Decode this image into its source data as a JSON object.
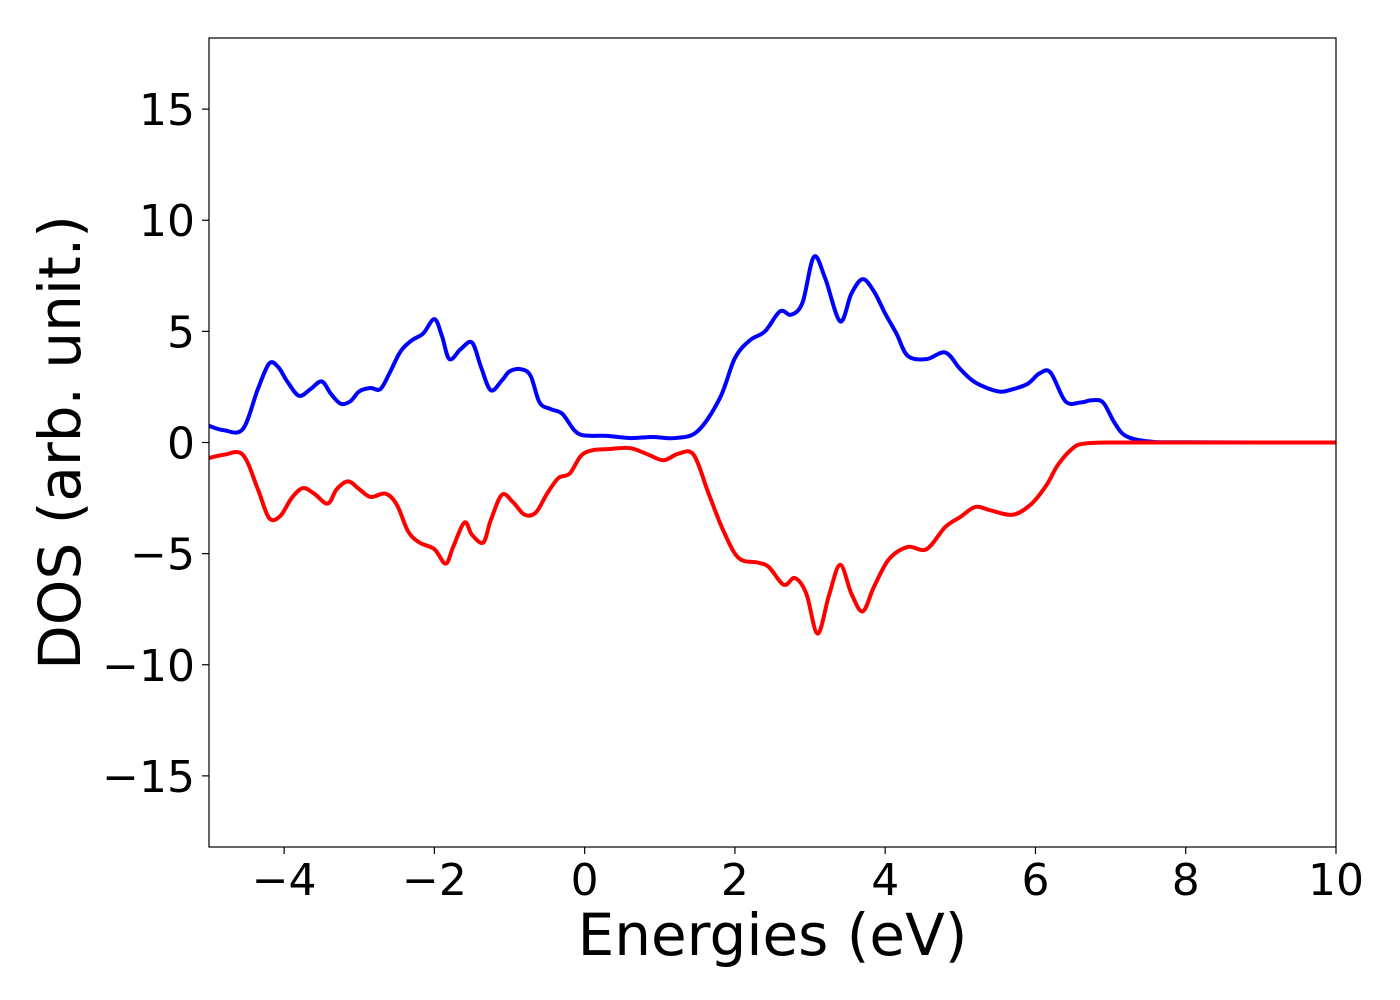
{
  "chart_data": {
    "type": "line",
    "title": "",
    "xlabel": "Energies (eV)",
    "ylabel": "DOS (arb. unit.)",
    "xlim": [
      -5,
      10
    ],
    "ylim": [
      -18.2,
      18.2
    ],
    "xticks": [
      -4,
      -2,
      0,
      2,
      4,
      6,
      8,
      10
    ],
    "yticks": [
      -15,
      -10,
      -5,
      0,
      5,
      10,
      15
    ],
    "xtick_labels": [
      "−4",
      "−2",
      "0",
      "2",
      "4",
      "6",
      "8",
      "10"
    ],
    "ytick_labels": [
      "−15",
      "−10",
      "−5",
      "0",
      "5",
      "10",
      "15"
    ],
    "grid": false,
    "legend": "none",
    "series": [
      {
        "color": "#0000ff",
        "x": [
          -5.0,
          -4.8,
          -4.55,
          -4.35,
          -4.2,
          -4.08,
          -3.95,
          -3.8,
          -3.65,
          -3.5,
          -3.38,
          -3.25,
          -3.12,
          -3.0,
          -2.85,
          -2.72,
          -2.6,
          -2.45,
          -2.3,
          -2.15,
          -2.0,
          -1.9,
          -1.8,
          -1.65,
          -1.5,
          -1.38,
          -1.25,
          -1.1,
          -1.0,
          -0.85,
          -0.72,
          -0.6,
          -0.45,
          -0.3,
          -0.15,
          -0.05,
          0.1,
          0.3,
          0.6,
          0.9,
          1.2,
          1.5,
          1.8,
          2.0,
          2.2,
          2.4,
          2.6,
          2.75,
          2.9,
          3.05,
          3.2,
          3.4,
          3.55,
          3.7,
          3.85,
          4.0,
          4.15,
          4.3,
          4.55,
          4.8,
          5.0,
          5.2,
          5.5,
          5.7,
          5.9,
          6.05,
          6.2,
          6.4,
          6.6,
          6.75,
          6.9,
          7.05,
          7.2,
          7.5,
          8.0,
          10.0
        ],
        "y": [
          0.75,
          0.55,
          0.6,
          2.4,
          3.55,
          3.4,
          2.7,
          2.1,
          2.4,
          2.75,
          2.2,
          1.75,
          1.85,
          2.3,
          2.45,
          2.4,
          3.1,
          4.1,
          4.6,
          4.9,
          5.55,
          4.8,
          3.75,
          4.2,
          4.5,
          3.4,
          2.35,
          2.8,
          3.2,
          3.3,
          3.0,
          1.8,
          1.5,
          1.3,
          0.6,
          0.35,
          0.3,
          0.3,
          0.2,
          0.25,
          0.2,
          0.5,
          2.0,
          3.8,
          4.6,
          5.0,
          5.9,
          5.75,
          6.3,
          8.35,
          7.4,
          5.45,
          6.7,
          7.35,
          6.8,
          5.8,
          4.9,
          3.9,
          3.75,
          4.05,
          3.3,
          2.7,
          2.3,
          2.4,
          2.65,
          3.1,
          3.15,
          1.85,
          1.8,
          1.9,
          1.8,
          0.9,
          0.3,
          0.05,
          0.01,
          0.0
        ]
      },
      {
        "color": "#ff0000",
        "x": [
          -5.0,
          -4.8,
          -4.55,
          -4.35,
          -4.2,
          -4.05,
          -3.9,
          -3.75,
          -3.6,
          -3.42,
          -3.3,
          -3.15,
          -3.0,
          -2.85,
          -2.65,
          -2.5,
          -2.35,
          -2.2,
          -2.0,
          -1.85,
          -1.75,
          -1.6,
          -1.5,
          -1.35,
          -1.25,
          -1.1,
          -0.95,
          -0.8,
          -0.65,
          -0.5,
          -0.35,
          -0.2,
          -0.05,
          0.1,
          0.3,
          0.6,
          0.85,
          1.05,
          1.25,
          1.45,
          1.65,
          1.85,
          2.05,
          2.3,
          2.45,
          2.65,
          2.8,
          2.95,
          3.1,
          3.25,
          3.4,
          3.55,
          3.7,
          3.85,
          4.05,
          4.3,
          4.55,
          4.8,
          5.0,
          5.2,
          5.4,
          5.7,
          5.95,
          6.15,
          6.3,
          6.5,
          6.65,
          7.0,
          8.0,
          10.0
        ],
        "y": [
          -0.7,
          -0.55,
          -0.55,
          -2.1,
          -3.4,
          -3.3,
          -2.5,
          -2.05,
          -2.3,
          -2.75,
          -2.1,
          -1.75,
          -2.1,
          -2.45,
          -2.3,
          -2.8,
          -4.0,
          -4.5,
          -4.8,
          -5.45,
          -4.7,
          -3.6,
          -4.15,
          -4.5,
          -3.5,
          -2.35,
          -2.7,
          -3.25,
          -3.15,
          -2.3,
          -1.6,
          -1.4,
          -0.6,
          -0.35,
          -0.3,
          -0.25,
          -0.55,
          -0.8,
          -0.5,
          -0.55,
          -2.3,
          -4.0,
          -5.2,
          -5.4,
          -5.6,
          -6.4,
          -6.1,
          -6.8,
          -8.6,
          -6.9,
          -5.5,
          -6.8,
          -7.6,
          -6.5,
          -5.25,
          -4.7,
          -4.8,
          -3.8,
          -3.35,
          -2.9,
          -3.05,
          -3.25,
          -2.75,
          -1.9,
          -1.0,
          -0.25,
          -0.05,
          0.0,
          0.0,
          0.0
        ]
      }
    ]
  }
}
